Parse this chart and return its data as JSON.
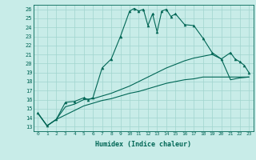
{
  "xlabel": "Humidex (Indice chaleur)",
  "xlim": [
    -0.5,
    23.5
  ],
  "ylim": [
    12.5,
    26.5
  ],
  "xticks": [
    0,
    1,
    2,
    3,
    4,
    5,
    6,
    7,
    8,
    9,
    10,
    11,
    12,
    13,
    14,
    15,
    16,
    17,
    18,
    19,
    20,
    21,
    22,
    23
  ],
  "yticks": [
    13,
    14,
    15,
    16,
    17,
    18,
    19,
    20,
    21,
    22,
    23,
    24,
    25,
    26
  ],
  "bg_color": "#c8ece8",
  "grid_color": "#a0d4ce",
  "line_color": "#006655",
  "line1_x": [
    0,
    1,
    2,
    3,
    4,
    5,
    5.5,
    6,
    7,
    8,
    9,
    10,
    10.5,
    11,
    11.5,
    12,
    12.5,
    13,
    13.5,
    14,
    14.5,
    15,
    16,
    17,
    18,
    19,
    20,
    21,
    21.5,
    22,
    22.5,
    23
  ],
  "line1": [
    14.5,
    13.1,
    13.8,
    15.7,
    15.8,
    16.2,
    16.0,
    16.2,
    19.5,
    20.5,
    23.0,
    25.8,
    26.1,
    25.8,
    26.0,
    24.2,
    25.5,
    23.5,
    25.8,
    26.0,
    25.2,
    25.5,
    24.3,
    24.2,
    22.8,
    21.2,
    20.5,
    21.2,
    20.5,
    20.2,
    19.8,
    19.0
  ],
  "line2_x": [
    0,
    1,
    2,
    3,
    4,
    5,
    6,
    7,
    8,
    9,
    10,
    11,
    12,
    13,
    14,
    15,
    16,
    17,
    18,
    19,
    20,
    21,
    22,
    23
  ],
  "line2": [
    14.5,
    13.1,
    13.8,
    15.2,
    15.5,
    16.0,
    16.1,
    16.4,
    16.7,
    17.1,
    17.5,
    18.0,
    18.5,
    19.0,
    19.5,
    19.9,
    20.3,
    20.6,
    20.8,
    21.0,
    20.5,
    18.2,
    18.4,
    18.5
  ],
  "line3_x": [
    0,
    1,
    2,
    3,
    4,
    5,
    6,
    7,
    8,
    9,
    10,
    11,
    12,
    13,
    14,
    15,
    16,
    17,
    18,
    19,
    20,
    21,
    22,
    23
  ],
  "line3": [
    14.5,
    13.1,
    13.8,
    14.3,
    14.8,
    15.3,
    15.6,
    15.9,
    16.1,
    16.4,
    16.7,
    16.9,
    17.2,
    17.5,
    17.8,
    18.0,
    18.2,
    18.3,
    18.5,
    18.5,
    18.5,
    18.5,
    18.5,
    18.5
  ]
}
